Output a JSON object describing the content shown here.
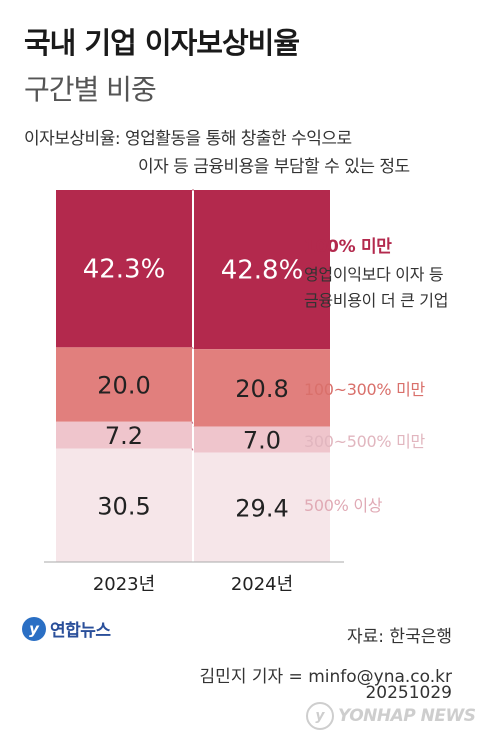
{
  "chart_data": {
    "type": "bar",
    "stacked": true,
    "title": "국내 기업 이자보상비율",
    "subtitle": "구간별 비중",
    "definition": {
      "line1": "이자보상비율: 영업활동을 통해 창출한 수익으로",
      "line2": "이자 등 금융비용을 부담할 수 있는 정도"
    },
    "categories": [
      "2023년",
      "2024년"
    ],
    "series": [
      {
        "name": "100% 미만",
        "description_line1": "영업이익보다 이자 등",
        "description_line2": "금융비용이 더 큰 기업",
        "color": "#b3294d",
        "values": [
          42.3,
          42.8
        ],
        "labels": [
          "42.3%",
          "42.8%"
        ],
        "label_color": "#ffffff"
      },
      {
        "name": "100~300% 미만",
        "color": "#e17f7d",
        "values": [
          20.0,
          20.8
        ],
        "labels": [
          "20.0",
          "20.8"
        ],
        "label_color": "#222222"
      },
      {
        "name": "300~500% 미만",
        "color": "#efc5cc",
        "values": [
          7.2,
          7.0
        ],
        "labels": [
          "7.2",
          "7.0"
        ],
        "label_color": "#222222"
      },
      {
        "name": "500% 이상",
        "color": "#f6e6e9",
        "values": [
          30.5,
          29.4
        ],
        "labels": [
          "30.5",
          "29.4"
        ],
        "label_color": "#222222"
      }
    ],
    "ylim": [
      0,
      100
    ]
  },
  "footer": {
    "logo_text": "연합뉴스",
    "source": "자료: 한국은행",
    "credit": "김민지 기자 = minfo@yna.co.kr",
    "date": "20251029",
    "watermark": "YONHAP NEWS"
  }
}
